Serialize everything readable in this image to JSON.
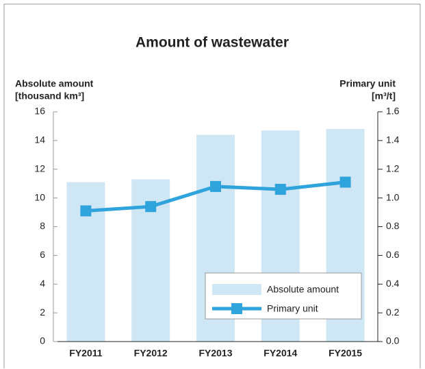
{
  "chart_data": {
    "type": "bar_line",
    "title": "Amount of wastewater",
    "y_label": [
      "Absolute amount",
      "[thousand km³]"
    ],
    "y2_label": [
      "Primary unit",
      "[m³/t]"
    ],
    "categories": [
      "FY2011",
      "FY2012",
      "FY2013",
      "FY2014",
      "FY2015"
    ],
    "series": [
      {
        "name": "Absolute amount",
        "type": "bar",
        "color": "#cfe6f5",
        "values": [
          11.1,
          11.3,
          14.4,
          14.7,
          14.8
        ]
      },
      {
        "name": "Primary unit",
        "type": "line",
        "color": "#2fa3dc",
        "axis": "y2",
        "values": [
          0.91,
          0.94,
          1.08,
          1.06,
          1.11
        ]
      }
    ],
    "ylim": [
      0,
      16
    ],
    "yticks": [
      0,
      2,
      4,
      6,
      8,
      10,
      12,
      14,
      16
    ],
    "y2lim": [
      0,
      1.6
    ],
    "y2ticks": [
      {
        "value": 0,
        "label": "0.0"
      },
      0.2,
      0.4,
      0.6,
      0.8,
      {
        "value": 1,
        "label": "1.0"
      },
      1.2,
      1.4,
      1.6
    ],
    "legend": "lower right"
  }
}
